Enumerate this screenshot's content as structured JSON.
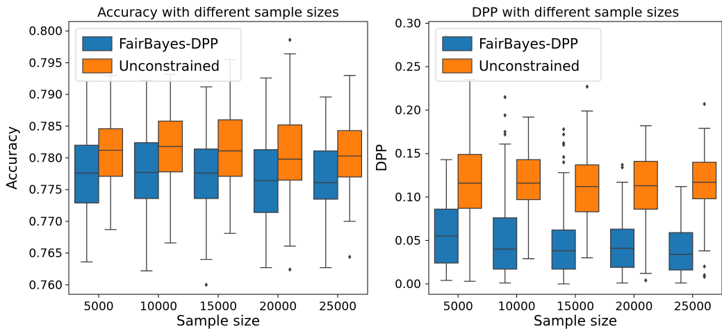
{
  "chart_data": [
    {
      "type": "box",
      "title": "Accuracy with different sample sizes",
      "xlabel": "Sample size",
      "ylabel": "Accuracy",
      "categories": [
        "5000",
        "10000",
        "15000",
        "20000",
        "25000"
      ],
      "ylim": [
        0.7585,
        0.8015
      ],
      "yticks": [
        "0.760",
        "0.765",
        "0.770",
        "0.775",
        "0.780",
        "0.785",
        "0.790",
        "0.795",
        "0.800"
      ],
      "legend_position": "upper-left",
      "series": [
        {
          "name": "FairBayes-DPP",
          "color": "#1f77b4",
          "boxes": [
            {
              "whislo": 0.7636,
              "q1": 0.7729,
              "med": 0.7776,
              "q3": 0.782,
              "whishi": 0.7921,
              "fliers": []
            },
            {
              "whislo": 0.7622,
              "q1": 0.7736,
              "med": 0.7777,
              "q3": 0.7824,
              "whishi": 0.7922,
              "fliers": []
            },
            {
              "whislo": 0.764,
              "q1": 0.7736,
              "med": 0.7776,
              "q3": 0.7814,
              "whishi": 0.7912,
              "fliers": [
                0.76
              ]
            },
            {
              "whislo": 0.7627,
              "q1": 0.7714,
              "med": 0.7764,
              "q3": 0.7813,
              "whishi": 0.7926,
              "fliers": []
            },
            {
              "whislo": 0.7627,
              "q1": 0.7735,
              "med": 0.7761,
              "q3": 0.7811,
              "whishi": 0.7896,
              "fliers": []
            }
          ]
        },
        {
          "name": "Unconstrained",
          "color": "#ff7f0e",
          "boxes": [
            {
              "whislo": 0.7687,
              "q1": 0.7771,
              "med": 0.7812,
              "q3": 0.7846,
              "whishi": 0.793,
              "fliers": []
            },
            {
              "whislo": 0.7666,
              "q1": 0.7778,
              "med": 0.7818,
              "q3": 0.7858,
              "whishi": 0.7932,
              "fliers": []
            },
            {
              "whislo": 0.7681,
              "q1": 0.7771,
              "med": 0.7811,
              "q3": 0.786,
              "whishi": 0.7955,
              "fliers": []
            },
            {
              "whislo": 0.7661,
              "q1": 0.7765,
              "med": 0.7798,
              "q3": 0.7852,
              "whishi": 0.7964,
              "fliers": [
                0.7986,
                0.7624
              ]
            },
            {
              "whislo": 0.77,
              "q1": 0.777,
              "med": 0.7803,
              "q3": 0.7843,
              "whishi": 0.793,
              "fliers": [
                0.7644
              ]
            }
          ]
        }
      ]
    },
    {
      "type": "box",
      "title": "DPP with different sample sizes",
      "xlabel": "Sample size",
      "ylabel": "DPP",
      "categories": [
        "5000",
        "10000",
        "15000",
        "20000",
        "25000"
      ],
      "ylim": [
        -0.012,
        0.302
      ],
      "yticks": [
        "0.00",
        "0.05",
        "0.10",
        "0.15",
        "0.20",
        "0.25",
        "0.30"
      ],
      "legend_position": "upper-left",
      "series": [
        {
          "name": "FairBayes-DPP",
          "color": "#1f77b4",
          "boxes": [
            {
              "whislo": 0.004,
              "q1": 0.024,
              "med": 0.055,
              "q3": 0.086,
              "whishi": 0.143,
              "fliers": [
                0.285,
                0.271,
                0.249
              ]
            },
            {
              "whislo": 0.001,
              "q1": 0.017,
              "med": 0.04,
              "q3": 0.076,
              "whishi": 0.161,
              "fliers": [
                0.215,
                0.194,
                0.175,
                0.172
              ]
            },
            {
              "whislo": 0.0,
              "q1": 0.017,
              "med": 0.038,
              "q3": 0.062,
              "whishi": 0.128,
              "fliers": [
                0.178,
                0.172,
                0.162,
                0.16,
                0.146,
                0.14
              ]
            },
            {
              "whislo": 0.001,
              "q1": 0.019,
              "med": 0.041,
              "q3": 0.063,
              "whishi": 0.117,
              "fliers": [
                0.137,
                0.134
              ]
            },
            {
              "whislo": 0.001,
              "q1": 0.016,
              "med": 0.034,
              "q3": 0.059,
              "whishi": 0.112,
              "fliers": []
            }
          ]
        },
        {
          "name": "Unconstrained",
          "color": "#ff7f0e",
          "boxes": [
            {
              "whislo": 0.003,
              "q1": 0.087,
              "med": 0.116,
              "q3": 0.149,
              "whishi": 0.235,
              "fliers": [
                0.246
              ]
            },
            {
              "whislo": 0.029,
              "q1": 0.097,
              "med": 0.116,
              "q3": 0.143,
              "whishi": 0.192,
              "fliers": []
            },
            {
              "whislo": 0.03,
              "q1": 0.083,
              "med": 0.112,
              "q3": 0.137,
              "whishi": 0.199,
              "fliers": [
                0.227
              ]
            },
            {
              "whislo": 0.012,
              "q1": 0.086,
              "med": 0.113,
              "q3": 0.141,
              "whishi": 0.182,
              "fliers": [
                0.004
              ]
            },
            {
              "whislo": 0.038,
              "q1": 0.098,
              "med": 0.117,
              "q3": 0.14,
              "whishi": 0.179,
              "fliers": [
                0.207,
                0.02,
                0.01,
                0.008
              ]
            }
          ]
        }
      ]
    }
  ]
}
